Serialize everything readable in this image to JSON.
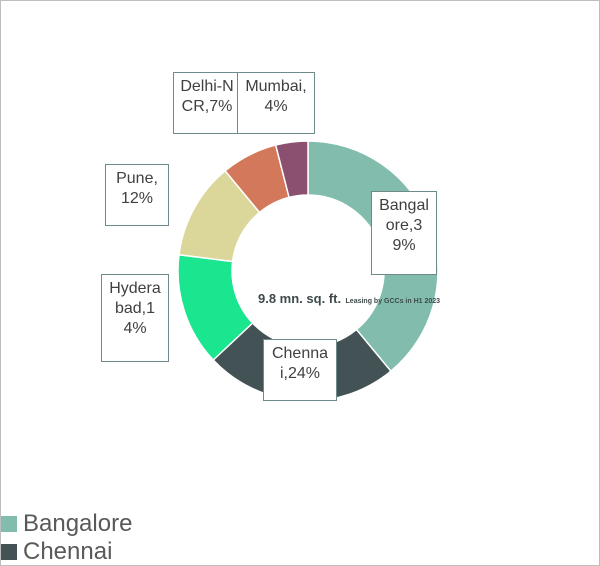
{
  "chart_data": {
    "type": "pie",
    "variant": "donut",
    "categories": [
      "Bangalore",
      "Chennai",
      "Hyderabad",
      "Pune",
      "Delhi-NCR",
      "Mumbai"
    ],
    "values": [
      39,
      24,
      14,
      12,
      7,
      4
    ],
    "unit": "%",
    "data_labels": [
      "Bangalore,39%",
      "Chennai,24%",
      "Hyderabad,14%",
      "Pune,12%",
      "Delhi-NCR,7%",
      "Mumbai,4%"
    ],
    "colors": [
      "#82bcad",
      "#435355",
      "#19e68f",
      "#dbd79a",
      "#d3785a",
      "#8b5070"
    ],
    "center_text": {
      "main": "9.8 mn. sq. ft.",
      "sub": "Leasing by GCCs in H1 2023"
    },
    "legend": {
      "position": "bottom-left",
      "entries": [
        "Bangalore",
        "Chennai"
      ]
    }
  }
}
